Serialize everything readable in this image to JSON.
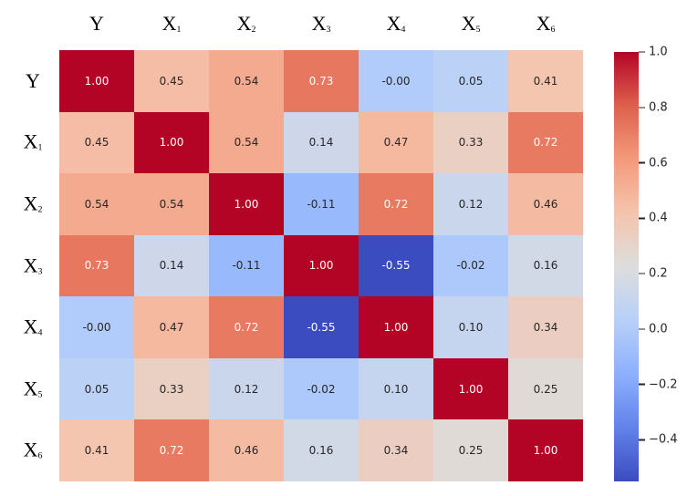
{
  "chart_data": {
    "type": "heatmap",
    "title": "",
    "xlabel": "",
    "ylabel": "",
    "colormap": "coolwarm",
    "vmin": -0.55,
    "vmax": 1.0,
    "grid": false,
    "legend_position": "right-colorbar",
    "categories": [
      {
        "base": "Y",
        "sub": ""
      },
      {
        "base": "X",
        "sub": "1"
      },
      {
        "base": "X",
        "sub": "2"
      },
      {
        "base": "X",
        "sub": "3"
      },
      {
        "base": "X",
        "sub": "4"
      },
      {
        "base": "X",
        "sub": "5"
      },
      {
        "base": "X",
        "sub": "6"
      }
    ],
    "matrix": [
      [
        1.0,
        0.45,
        0.54,
        0.73,
        -0.0,
        0.05,
        0.41
      ],
      [
        0.45,
        1.0,
        0.54,
        0.14,
        0.47,
        0.33,
        0.72
      ],
      [
        0.54,
        0.54,
        1.0,
        -0.11,
        0.72,
        0.12,
        0.46
      ],
      [
        0.73,
        0.14,
        -0.11,
        1.0,
        -0.55,
        -0.02,
        0.16
      ],
      [
        -0.0,
        0.47,
        0.72,
        -0.55,
        1.0,
        0.1,
        0.34
      ],
      [
        0.05,
        0.33,
        0.12,
        -0.02,
        0.1,
        1.0,
        0.25
      ],
      [
        0.41,
        0.72,
        0.46,
        0.16,
        0.34,
        0.25,
        1.0
      ]
    ],
    "cell_labels": [
      [
        "1.00",
        "0.45",
        "0.54",
        "0.73",
        "-0.00",
        "0.05",
        "0.41"
      ],
      [
        "0.45",
        "1.00",
        "0.54",
        "0.14",
        "0.47",
        "0.33",
        "0.72"
      ],
      [
        "0.54",
        "0.54",
        "1.00",
        "-0.11",
        "0.72",
        "0.12",
        "0.46"
      ],
      [
        "0.73",
        "0.14",
        "-0.11",
        "1.00",
        "-0.55",
        "-0.02",
        "0.16"
      ],
      [
        "-0.00",
        "0.47",
        "0.72",
        "-0.55",
        "1.00",
        "0.10",
        "0.34"
      ],
      [
        "0.05",
        "0.33",
        "0.12",
        "-0.02",
        "0.10",
        "1.00",
        "0.25"
      ],
      [
        "0.41",
        "0.72",
        "0.46",
        "0.16",
        "0.34",
        "0.25",
        "1.00"
      ]
    ],
    "colorbar_ticks": [
      {
        "label": "1.0",
        "value": 1.0
      },
      {
        "label": "0.8",
        "value": 0.8
      },
      {
        "label": "0.6",
        "value": 0.6
      },
      {
        "label": "0.4",
        "value": 0.4
      },
      {
        "label": "0.2",
        "value": 0.2
      },
      {
        "label": "0.0",
        "value": 0.0
      },
      {
        "label": "−0.2",
        "value": -0.2
      },
      {
        "label": "−0.4",
        "value": -0.4
      }
    ],
    "colors": {
      "annotation_dark": "#262626",
      "annotation_light": "#ffffff",
      "axis_label": "#000000",
      "background": "#ffffff",
      "cmap_low": "#3b4cc0",
      "cmap_mid": "#dddddd",
      "cmap_high": "#b40426"
    }
  }
}
